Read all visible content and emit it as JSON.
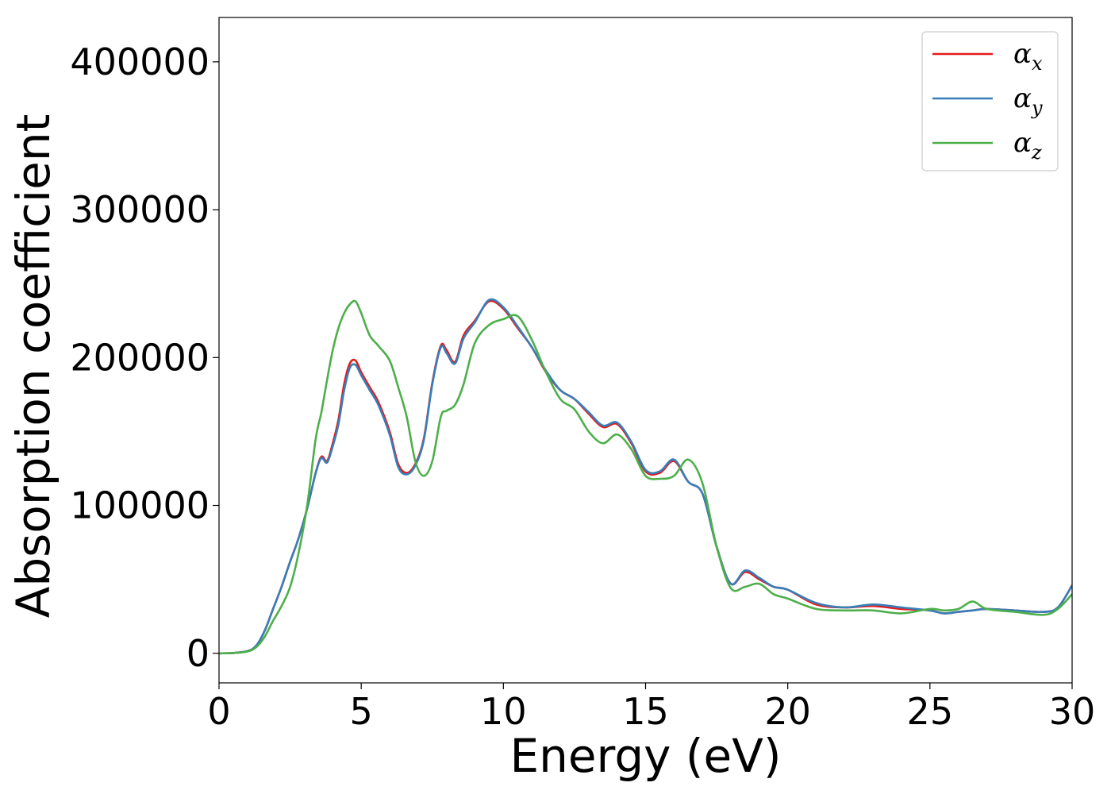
{
  "chart_data": {
    "type": "line",
    "xlabel": "Energy (eV)",
    "ylabel": "Absorption coefficient",
    "xlim": [
      0,
      30
    ],
    "ylim": [
      -20000,
      430000
    ],
    "xticks": [
      0,
      5,
      10,
      15,
      20,
      25,
      30
    ],
    "yticks": [
      0,
      100000,
      200000,
      300000,
      400000
    ],
    "grid": false,
    "legend_position": "top-right",
    "series": [
      {
        "name": "αx",
        "symbol": "α",
        "subscript": "x",
        "color": "#e41a1c",
        "x": [
          0,
          0.5,
          1,
          1.3,
          1.6,
          1.9,
          2.2,
          2.5,
          2.8,
          3.1,
          3.4,
          3.6,
          3.8,
          4.0,
          4.2,
          4.4,
          4.6,
          4.8,
          5.0,
          5.3,
          5.6,
          6.0,
          6.3,
          6.6,
          6.9,
          7.2,
          7.5,
          7.8,
          8.0,
          8.3,
          8.6,
          9.0,
          9.5,
          10.0,
          10.5,
          11.0,
          11.5,
          12.0,
          12.5,
          13.0,
          13.5,
          14.0,
          14.5,
          15.0,
          15.5,
          16.0,
          16.5,
          17.0,
          17.5,
          18.0,
          18.5,
          19.0,
          19.5,
          20.0,
          21.0,
          22.0,
          23.0,
          24.0,
          25.0,
          25.5,
          26.0,
          26.5,
          27.0,
          28.0,
          29.0,
          29.5,
          30.0
        ],
        "y": [
          0,
          200,
          1500,
          5000,
          15000,
          30000,
          45000,
          62000,
          78000,
          98000,
          122000,
          133000,
          130000,
          142000,
          158000,
          182000,
          196000,
          198000,
          190000,
          180000,
          170000,
          150000,
          128000,
          122000,
          128000,
          145000,
          183000,
          208000,
          205000,
          197000,
          215000,
          225000,
          238000,
          233000,
          220000,
          207000,
          190000,
          178000,
          172000,
          162000,
          153000,
          155000,
          142000,
          123000,
          122000,
          130000,
          116000,
          108000,
          72000,
          47000,
          55000,
          50000,
          45000,
          43000,
          33000,
          31000,
          32000,
          30000,
          29000,
          27000,
          28000,
          29000,
          30000,
          29000,
          28000,
          31000,
          46000
        ]
      },
      {
        "name": "αy",
        "symbol": "α",
        "subscript": "y",
        "color": "#377eb8",
        "x": [
          0,
          0.5,
          1,
          1.3,
          1.6,
          1.9,
          2.2,
          2.5,
          2.8,
          3.1,
          3.4,
          3.6,
          3.8,
          4.0,
          4.2,
          4.4,
          4.6,
          4.8,
          5.0,
          5.3,
          5.6,
          6.0,
          6.3,
          6.6,
          6.9,
          7.2,
          7.5,
          7.8,
          8.0,
          8.3,
          8.6,
          9.0,
          9.5,
          10.0,
          10.5,
          11.0,
          11.5,
          12.0,
          12.5,
          13.0,
          13.5,
          14.0,
          14.5,
          15.0,
          15.5,
          16.0,
          16.5,
          17.0,
          17.5,
          18.0,
          18.5,
          19.0,
          19.5,
          20.0,
          21.0,
          22.0,
          23.0,
          24.0,
          25.0,
          25.5,
          26.0,
          26.5,
          27.0,
          28.0,
          29.0,
          29.5,
          30.0
        ],
        "y": [
          0,
          200,
          1500,
          5000,
          15000,
          30000,
          45000,
          62000,
          78000,
          98000,
          122000,
          132000,
          129000,
          140000,
          155000,
          178000,
          193000,
          195000,
          188000,
          178000,
          168000,
          148000,
          126000,
          121000,
          127000,
          144000,
          182000,
          207000,
          203000,
          196000,
          213000,
          224000,
          239000,
          234000,
          221000,
          207000,
          191000,
          178000,
          172000,
          163000,
          154000,
          156000,
          143000,
          124000,
          123000,
          131000,
          116000,
          108000,
          72000,
          47000,
          56000,
          51000,
          45000,
          43000,
          34000,
          31000,
          33000,
          31000,
          29000,
          27000,
          28000,
          29000,
          30000,
          29000,
          28000,
          31000,
          46000
        ]
      },
      {
        "name": "αz",
        "symbol": "α",
        "subscript": "z",
        "color": "#4daf4a",
        "x": [
          0,
          0.5,
          1,
          1.3,
          1.6,
          1.9,
          2.2,
          2.5,
          2.8,
          3.1,
          3.4,
          3.6,
          3.8,
          4.0,
          4.2,
          4.4,
          4.6,
          4.8,
          5.0,
          5.3,
          5.6,
          6.0,
          6.3,
          6.6,
          6.9,
          7.2,
          7.5,
          7.8,
          8.0,
          8.3,
          8.6,
          9.0,
          9.5,
          10.0,
          10.5,
          11.0,
          11.5,
          12.0,
          12.5,
          13.0,
          13.5,
          14.0,
          14.5,
          15.0,
          15.5,
          16.0,
          16.5,
          17.0,
          17.5,
          18.0,
          18.5,
          19.0,
          19.5,
          20.0,
          21.0,
          22.0,
          23.0,
          24.0,
          25.0,
          25.5,
          26.0,
          26.5,
          27.0,
          28.0,
          29.0,
          29.5,
          30.0
        ],
        "y": [
          0,
          200,
          1200,
          4000,
          11000,
          22000,
          32000,
          45000,
          68000,
          100000,
          145000,
          163000,
          185000,
          205000,
          220000,
          230000,
          236000,
          238000,
          230000,
          215000,
          208000,
          198000,
          180000,
          160000,
          130000,
          120000,
          130000,
          160000,
          164000,
          168000,
          182000,
          210000,
          222000,
          226000,
          228000,
          212000,
          190000,
          172000,
          165000,
          150000,
          142000,
          148000,
          138000,
          120000,
          118000,
          120000,
          131000,
          115000,
          72000,
          44000,
          45000,
          47000,
          40000,
          37000,
          30000,
          29000,
          29000,
          27000,
          30000,
          29000,
          30000,
          35000,
          30000,
          28000,
          26000,
          30000,
          40000
        ]
      }
    ]
  }
}
